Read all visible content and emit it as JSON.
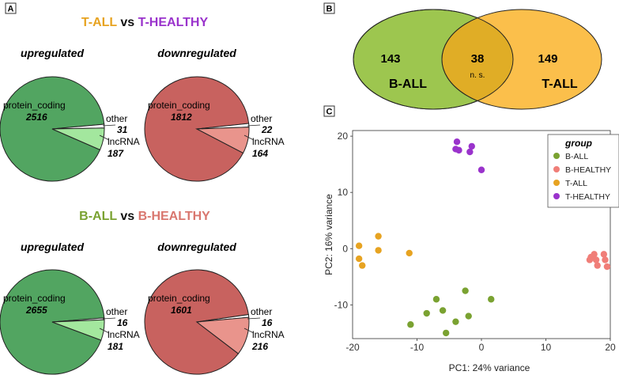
{
  "panels": {
    "a_label": "A",
    "b_label": "B",
    "c_label": "C"
  },
  "colors": {
    "t_all": "#e7a321",
    "t_healthy": "#9a33cc",
    "b_all": "#7aa231",
    "b_healthy": "#d9776f",
    "up_main": "#52a561",
    "up_lnc": "#a3e79e",
    "down_main": "#c8625f",
    "down_lnc": "#e9948c",
    "venn_left": "#9dc64f",
    "venn_right": "#fbbf4b",
    "venn_overlap": "#e0ad26"
  },
  "chart_data": [
    {
      "type": "pie",
      "section": "T-ALL vs T-HEALTHY",
      "heading_parts": [
        "T-ALL",
        " vs ",
        "T-HEALTHY"
      ],
      "charts": [
        {
          "title": "upregulated",
          "slices": [
            {
              "label": "protein_coding",
              "value": 2516
            },
            {
              "label": "other",
              "value": 31
            },
            {
              "label": "lncRNA",
              "value": 187
            }
          ]
        },
        {
          "title": "downregulated",
          "slices": [
            {
              "label": "protein_coding",
              "value": 1812
            },
            {
              "label": "other",
              "value": 22
            },
            {
              "label": "lncRNA",
              "value": 164
            }
          ]
        }
      ]
    },
    {
      "type": "pie",
      "section": "B-ALL vs B-HEALTHY",
      "heading_parts": [
        "B-ALL",
        " vs ",
        "B-HEALTHY"
      ],
      "charts": [
        {
          "title": "upregulated",
          "slices": [
            {
              "label": "protein_coding",
              "value": 2655
            },
            {
              "label": "other",
              "value": 16
            },
            {
              "label": "lncRNA",
              "value": 181
            }
          ]
        },
        {
          "title": "downregulated",
          "slices": [
            {
              "label": "protein_coding",
              "value": 1601
            },
            {
              "label": "other",
              "value": 16
            },
            {
              "label": "lncRNA",
              "value": 216
            }
          ]
        }
      ]
    },
    {
      "type": "venn",
      "sets": [
        {
          "name": "B-ALL",
          "only": 143
        },
        {
          "name": "T-ALL",
          "only": 149
        }
      ],
      "overlap": 38,
      "overlap_note": "n. s."
    },
    {
      "type": "scatter",
      "xlabel": "PC1: 24% variance",
      "ylabel": "PC2: 16% variance",
      "xlim": [
        -20,
        20
      ],
      "ylim": [
        -16,
        21
      ],
      "xticks": [
        -20,
        -10,
        0,
        10,
        20
      ],
      "yticks": [
        -10,
        0,
        10,
        20
      ],
      "legend_title": "group",
      "legend_position": "top-right",
      "series": [
        {
          "name": "B-ALL",
          "color": "#7aa231",
          "points": [
            [
              -11,
              -13.5
            ],
            [
              -8.5,
              -11.5
            ],
            [
              -7,
              -9
            ],
            [
              -6,
              -11
            ],
            [
              -5.5,
              -15
            ],
            [
              -4,
              -13
            ],
            [
              -2.5,
              -7.5
            ],
            [
              -2,
              -12
            ],
            [
              1.5,
              -9
            ]
          ]
        },
        {
          "name": "B-HEALTHY",
          "color": "#f07e78",
          "points": [
            [
              17,
              -1.5
            ],
            [
              17.5,
              -1
            ],
            [
              17.8,
              -2
            ],
            [
              18,
              -3
            ],
            [
              19,
              -1
            ],
            [
              19.2,
              -2
            ],
            [
              19.5,
              -3.2
            ],
            [
              16.8,
              -2
            ]
          ]
        },
        {
          "name": "T-ALL",
          "color": "#e7a321",
          "points": [
            [
              -19,
              0.5
            ],
            [
              -19,
              -1.8
            ],
            [
              -18.5,
              -3
            ],
            [
              -16,
              2.2
            ],
            [
              -16,
              -0.3
            ],
            [
              -11.2,
              -0.8
            ]
          ]
        },
        {
          "name": "T-HEALTHY",
          "color": "#9a33cc",
          "points": [
            [
              -3.8,
              19
            ],
            [
              -4,
              17.7
            ],
            [
              -3.5,
              17.5
            ],
            [
              -1.5,
              18.2
            ],
            [
              -1.8,
              17.2
            ],
            [
              0,
              14
            ]
          ]
        }
      ]
    }
  ]
}
